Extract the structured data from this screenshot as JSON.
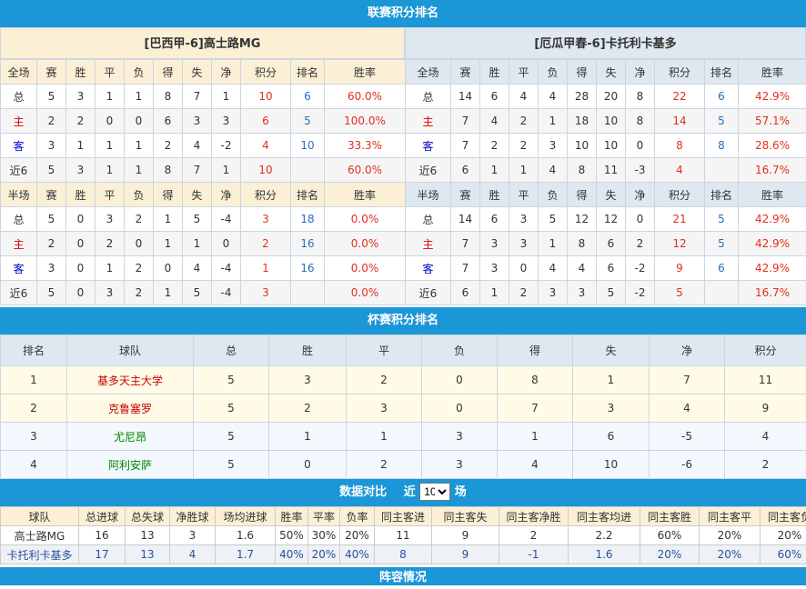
{
  "league": {
    "title": "联赛积分排名",
    "left": {
      "team": "[巴西甲-6]高士路MG",
      "full_header": [
        "全场",
        "赛",
        "胜",
        "平",
        "负",
        "得",
        "失",
        "净",
        "积分",
        "排名",
        "胜率"
      ],
      "full_rows": [
        [
          "总",
          "5",
          "3",
          "1",
          "1",
          "8",
          "7",
          "1",
          "10",
          "6",
          "60.0%"
        ],
        [
          "主",
          "2",
          "2",
          "0",
          "0",
          "6",
          "3",
          "3",
          "6",
          "5",
          "100.0%"
        ],
        [
          "客",
          "3",
          "1",
          "1",
          "1",
          "2",
          "4",
          "-2",
          "4",
          "10",
          "33.3%"
        ],
        [
          "近6",
          "5",
          "3",
          "1",
          "1",
          "8",
          "7",
          "1",
          "10",
          "",
          "60.0%"
        ]
      ],
      "half_header": [
        "半场",
        "赛",
        "胜",
        "平",
        "负",
        "得",
        "失",
        "净",
        "积分",
        "排名",
        "胜率"
      ],
      "half_rows": [
        [
          "总",
          "5",
          "0",
          "3",
          "2",
          "1",
          "5",
          "-4",
          "3",
          "18",
          "0.0%"
        ],
        [
          "主",
          "2",
          "0",
          "2",
          "0",
          "1",
          "1",
          "0",
          "2",
          "16",
          "0.0%"
        ],
        [
          "客",
          "3",
          "0",
          "1",
          "2",
          "0",
          "4",
          "-4",
          "1",
          "16",
          "0.0%"
        ],
        [
          "近6",
          "5",
          "0",
          "3",
          "2",
          "1",
          "5",
          "-4",
          "3",
          "",
          "0.0%"
        ]
      ]
    },
    "right": {
      "team": "[厄瓜甲春-6]卡托利卡基多",
      "full_header": [
        "全场",
        "赛",
        "胜",
        "平",
        "负",
        "得",
        "失",
        "净",
        "积分",
        "排名",
        "胜率"
      ],
      "full_rows": [
        [
          "总",
          "14",
          "6",
          "4",
          "4",
          "28",
          "20",
          "8",
          "22",
          "6",
          "42.9%"
        ],
        [
          "主",
          "7",
          "4",
          "2",
          "1",
          "18",
          "10",
          "8",
          "14",
          "5",
          "57.1%"
        ],
        [
          "客",
          "7",
          "2",
          "2",
          "3",
          "10",
          "10",
          "0",
          "8",
          "8",
          "28.6%"
        ],
        [
          "近6",
          "6",
          "1",
          "1",
          "4",
          "8",
          "11",
          "-3",
          "4",
          "",
          "16.7%"
        ]
      ],
      "half_header": [
        "半场",
        "赛",
        "胜",
        "平",
        "负",
        "得",
        "失",
        "净",
        "积分",
        "排名",
        "胜率"
      ],
      "half_rows": [
        [
          "总",
          "14",
          "6",
          "3",
          "5",
          "12",
          "12",
          "0",
          "21",
          "5",
          "42.9%"
        ],
        [
          "主",
          "7",
          "3",
          "3",
          "1",
          "8",
          "6",
          "2",
          "12",
          "5",
          "42.9%"
        ],
        [
          "客",
          "7",
          "3",
          "0",
          "4",
          "4",
          "6",
          "-2",
          "9",
          "6",
          "42.9%"
        ],
        [
          "近6",
          "6",
          "1",
          "2",
          "3",
          "3",
          "5",
          "-2",
          "5",
          "",
          "16.7%"
        ]
      ]
    }
  },
  "cup": {
    "title": "杯赛积分排名",
    "header": [
      "排名",
      "球队",
      "总",
      "胜",
      "平",
      "负",
      "得",
      "失",
      "净",
      "积分"
    ],
    "rows": [
      [
        "1",
        "基多天主大学",
        "5",
        "3",
        "2",
        "0",
        "8",
        "1",
        "7",
        "11"
      ],
      [
        "2",
        "克鲁塞罗",
        "5",
        "2",
        "3",
        "0",
        "7",
        "3",
        "4",
        "9"
      ],
      [
        "3",
        "尤尼昂",
        "5",
        "1",
        "1",
        "3",
        "1",
        "6",
        "-5",
        "4"
      ],
      [
        "4",
        "阿利安萨",
        "5",
        "0",
        "2",
        "3",
        "4",
        "10",
        "-6",
        "2"
      ]
    ]
  },
  "compare": {
    "title": "数据对比",
    "near": "近",
    "select_value": "10",
    "unit": "场",
    "header": [
      "球队",
      "总进球",
      "总失球",
      "净胜球",
      "场均进球",
      "胜率",
      "平率",
      "负率",
      "同主客进",
      "同主客失",
      "同主客净胜",
      "同主客均进",
      "同主客胜",
      "同主客平",
      "同主客负"
    ],
    "rows": [
      [
        "高士路MG",
        "16",
        "13",
        "3",
        "1.6",
        "50%",
        "30%",
        "20%",
        "11",
        "9",
        "2",
        "2.2",
        "60%",
        "20%",
        "20%"
      ],
      [
        "卡托利卡基多",
        "17",
        "13",
        "4",
        "1.7",
        "40%",
        "20%",
        "40%",
        "8",
        "9",
        "-1",
        "1.6",
        "20%",
        "20%",
        "60%"
      ]
    ]
  },
  "lineup": {
    "title": "阵容情况"
  }
}
